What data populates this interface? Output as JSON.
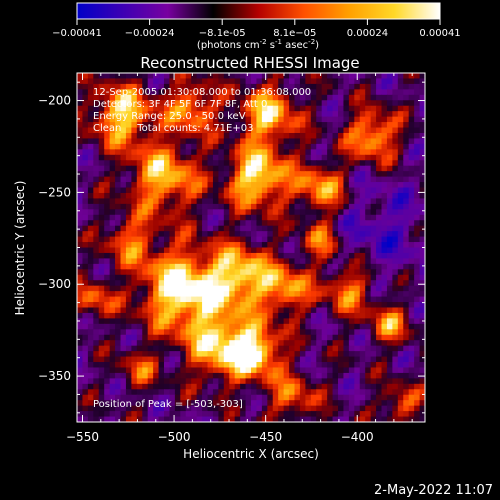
{
  "colorbar": {
    "ticks": [
      "-0.00041",
      "-0.00024",
      "-8.1e-05",
      "8.1e-05",
      "0.00024",
      "0.00041"
    ],
    "unit_prefix": "(photons cm",
    "unit_exp1": "-2",
    "unit_mid": " s",
    "unit_exp2": "-1",
    "unit_mid2": " asec",
    "unit_exp3": "-2",
    "unit_suffix": ")",
    "colors": [
      "#0000c8",
      "#3c00b4",
      "#7800a0",
      "#000000",
      "#b40000",
      "#ff5000",
      "#ffa000",
      "#ffd828",
      "#ffffff"
    ]
  },
  "chart_data": {
    "type": "heatmap",
    "title": "Reconstructed RHESSI Image",
    "xlabel": "Heliocentric X (arcsec)",
    "ylabel": "Heliocentric Y (arcsec)",
    "xlim": [
      -553,
      -363
    ],
    "ylim": [
      -375,
      -185
    ],
    "xticks": [
      -550,
      -500,
      -450,
      -400
    ],
    "xtick_labels": [
      "−550",
      "−500",
      "−450",
      "−400"
    ],
    "yticks": [
      -200,
      -250,
      -300,
      -350
    ],
    "ytick_labels": [
      "−200",
      "−250",
      "−300",
      "−350"
    ],
    "value_range": [
      -0.00041,
      0.00041
    ],
    "peak": {
      "x": -503,
      "y": -303
    },
    "info_lines": [
      "12-Sep-2005 01:30:08.000 to 01:36:08.000",
      "Detectors: 3F 4F 5F 6F 7F 8F, Att 0",
      "Energy Range: 25.0 - 50.0 keV",
      "Clean     Total counts: 4.71E+03"
    ],
    "peak_label": "Position of Peak = [-503,-303]"
  },
  "footer": {
    "date": "2-May-2022 11:07"
  }
}
